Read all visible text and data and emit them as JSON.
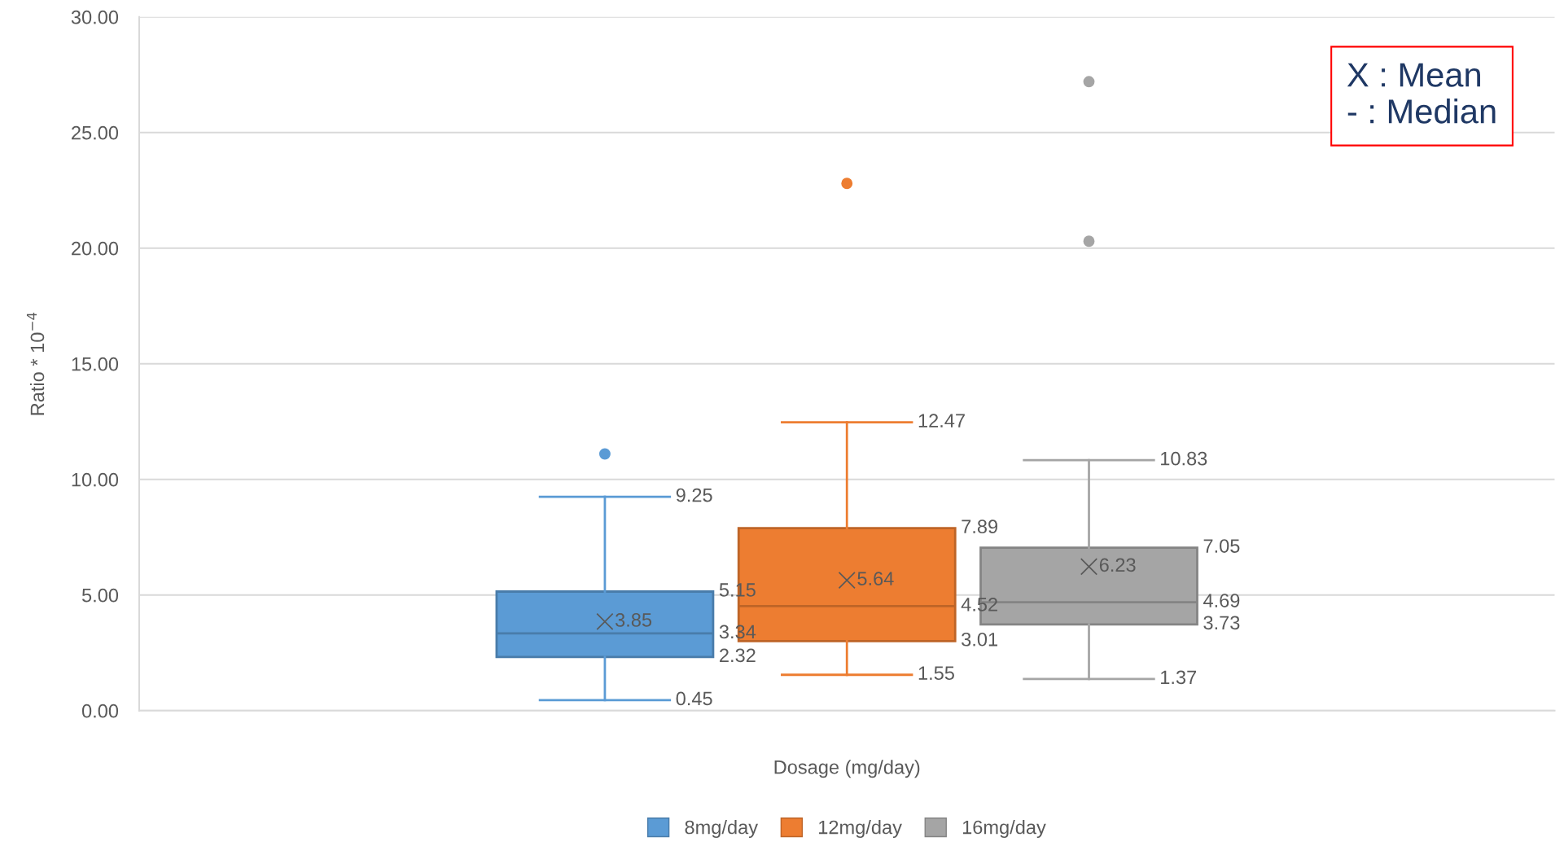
{
  "chart_data": {
    "type": "box",
    "xlabel": "Dosage (mg/day)",
    "ylabel": "Ratio * 10$^{−4}$",
    "categories": [
      null
    ],
    "series": [
      {
        "name": "8mg/day",
        "color": "#5b9bd5",
        "boxes": [
          {
            "low": 0.45,
            "q1": 2.32,
            "median": 3.34,
            "q3": 5.15,
            "high": 9.25,
            "mean": 3.85,
            "outliers": [
              11.1
            ]
          }
        ],
        "value_labels": [
          [
            "0.45",
            "2.32",
            "3.34",
            "5.15",
            "9.25",
            "3.85"
          ]
        ]
      },
      {
        "name": "12mg/day",
        "color": "#ed7d31",
        "boxes": [
          {
            "low": 1.55,
            "q1": 3.01,
            "median": 4.52,
            "q3": 7.89,
            "high": 12.47,
            "mean": 5.64,
            "outliers": [
              22.8
            ]
          }
        ],
        "value_labels": [
          [
            "1.55",
            "3.01",
            "4.52",
            "7.89",
            "12.47",
            "5.64"
          ]
        ]
      },
      {
        "name": "16mg/day",
        "color": "#a5a5a5",
        "boxes": [
          {
            "low": 1.37,
            "q1": 3.73,
            "median": 4.69,
            "q3": 7.05,
            "high": 10.83,
            "mean": 6.23,
            "outliers": [
              20.3,
              27.2
            ]
          }
        ],
        "value_labels": [
          [
            "1.37",
            "3.73",
            "4.69",
            "7.05",
            "10.83",
            "6.23"
          ]
        ]
      }
    ],
    "ylim": [
      0,
      30
    ],
    "yticks": [
      {
        "value": 0,
        "label": "0.00"
      },
      {
        "value": 5,
        "label": "5.00"
      },
      {
        "value": 10,
        "label": "10.00"
      },
      {
        "value": 15,
        "label": "15.00"
      },
      {
        "value": 20,
        "label": "20.00"
      },
      {
        "value": 25,
        "label": "25.00"
      },
      {
        "value": 30,
        "label": "30.00"
      }
    ],
    "grid": "y",
    "legend": "bottom",
    "marker": "circle",
    "annotations": [
      "X : Mean",
      "- : Median"
    ]
  }
}
